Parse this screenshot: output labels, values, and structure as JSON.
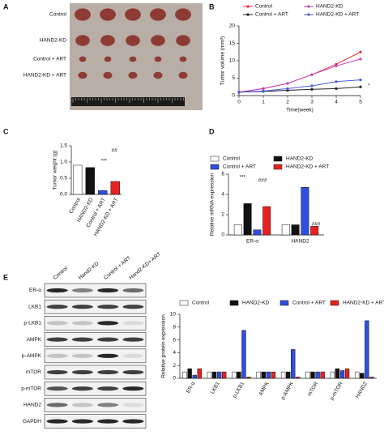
{
  "panel_labels": [
    "A",
    "B",
    "C",
    "D",
    "E"
  ],
  "photo": {
    "rows": [
      "Control",
      "HAND2-KD",
      "Control + ART",
      "HAND2-KD + ART"
    ]
  },
  "blot": {
    "lanes": [
      "Control",
      "Hand2-KD",
      "Control + ART",
      "Hand2-KD+ ART"
    ],
    "rows": [
      "ER-α",
      "LKB1",
      "p-LKB1",
      "AMPK",
      "p-AMPK",
      "mTOR",
      "p-mTOR",
      "HAND2",
      "GAPDH"
    ]
  },
  "chart_data": [
    {
      "type": "line",
      "x": [
        0,
        1,
        2,
        3,
        4,
        5
      ],
      "xlim": [
        0,
        5
      ],
      "xticks": [
        0,
        1,
        2,
        3,
        4,
        5
      ],
      "ylim": [
        0,
        20
      ],
      "yticks": [
        0,
        5,
        10,
        15,
        20
      ],
      "x_label": "Time(week)",
      "y_label": "Tumor volume (mm³)",
      "annotations": [
        "*"
      ],
      "series": [
        {
          "name": "Control",
          "color": "#e8303a",
          "values": [
            1,
            2,
            3.5,
            6,
            9,
            12.5
          ]
        },
        {
          "name": "HAND2-KD",
          "color": "#c040c0",
          "values": [
            1,
            2,
            3.5,
            6,
            8.5,
            10.5
          ]
        },
        {
          "name": "Control + ART",
          "color": "#222222",
          "values": [
            1,
            1.2,
            1.5,
            1.8,
            2,
            2.5
          ]
        },
        {
          "name": "HAND2-KD + ART",
          "color": "#4a5ce0",
          "values": [
            1,
            1.3,
            2,
            2.8,
            4,
            4.5
          ]
        }
      ]
    },
    {
      "type": "bar",
      "categories": [
        "Control",
        "HAND2-KD",
        "Control + ART",
        "HAND2-KD + ART"
      ],
      "values": [
        0.9,
        0.83,
        0.12,
        0.4
      ],
      "colors": [
        "#ffffff",
        "#111111",
        "#2f4fe0",
        "#e82020"
      ],
      "ylim": [
        0,
        1.5
      ],
      "yticks": [
        {
          "value": 0,
          "label": "0.0"
        },
        0.5,
        {
          "value": 1,
          "label": "1.0"
        },
        1.5
      ],
      "y_label": "Tumor weight (g)",
      "annotations": [
        "***",
        "##"
      ]
    },
    {
      "type": "bar",
      "categories": [
        "ER-α",
        "HAND2"
      ],
      "ylim": [
        0,
        6
      ],
      "yticks": [
        0,
        2,
        4,
        6
      ],
      "y_label": "Relative mRNA expression",
      "annotations": [
        "***",
        "###",
        "###"
      ],
      "series": [
        {
          "name": "Control",
          "color": "#ffffff",
          "values": [
            1,
            1
          ]
        },
        {
          "name": "HAND2-KD",
          "color": "#111111",
          "values": [
            3.1,
            1
          ]
        },
        {
          "name": "Control + ART",
          "color": "#2f4fe0",
          "values": [
            0.5,
            4.7
          ]
        },
        {
          "name": "HAND2-KD + ART",
          "color": "#e82020",
          "values": [
            2.8,
            0.85
          ]
        }
      ]
    },
    {
      "type": "bar",
      "categories": [
        "ER-α",
        "LKB1",
        "p-LKB1",
        "AMPK",
        "p-AMPK",
        "mTOR",
        "p-mTOR",
        "HAND2"
      ],
      "ylim": [
        0,
        10
      ],
      "yticks": [
        0,
        2,
        4,
        6,
        8,
        10
      ],
      "y_label": "Relative protein expression",
      "series": [
        {
          "name": "Control",
          "color": "#ffffff",
          "values": [
            1,
            1,
            1,
            1,
            1,
            1,
            1,
            1
          ]
        },
        {
          "name": "HAND2-KD",
          "color": "#111111",
          "values": [
            1.5,
            1,
            1,
            1,
            1,
            1,
            1.5,
            0.8
          ]
        },
        {
          "name": "Control + ART",
          "color": "#2f4fe0",
          "values": [
            0.5,
            1,
            7.5,
            1,
            4.5,
            1,
            1.2,
            9
          ]
        },
        {
          "name": "HAND2-KD + ART",
          "color": "#e82020",
          "values": [
            1.5,
            1,
            0.2,
            1,
            0.2,
            1,
            1.5,
            0.2
          ]
        }
      ]
    }
  ]
}
